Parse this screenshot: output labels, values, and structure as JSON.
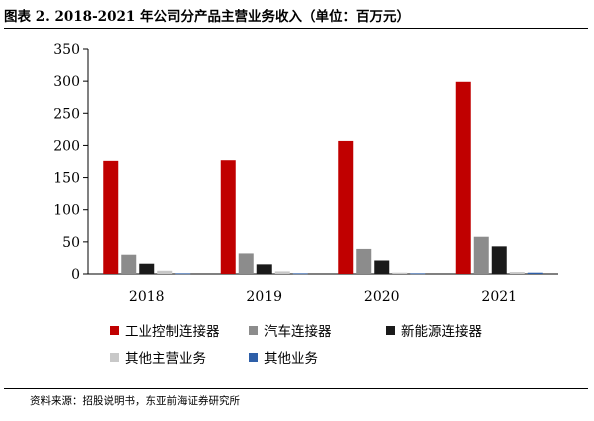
{
  "title": "图表 2.  2018-2021 年公司分产品主营业务收入（单位：百万元）",
  "source": "资料来源：招股说明书，东亚前海证券研究所",
  "chart_data": {
    "type": "bar",
    "categories": [
      "2018",
      "2019",
      "2020",
      "2021"
    ],
    "series": [
      {
        "name": "工业控制连接器",
        "color": "#c00000",
        "values": [
          176,
          177,
          207,
          299
        ]
      },
      {
        "name": "汽车连接器",
        "color": "#8c8c8c",
        "values": [
          30,
          32,
          39,
          58
        ]
      },
      {
        "name": "新能源连接器",
        "color": "#1a1a1a",
        "values": [
          16,
          15,
          21,
          43
        ]
      },
      {
        "name": "其他主营业务",
        "color": "#c8c8c8",
        "values": [
          5,
          4,
          2,
          3
        ]
      },
      {
        "name": "其他业务",
        "color": "#2e5fa8",
        "values": [
          1,
          1,
          1,
          2
        ]
      }
    ],
    "ylim": [
      0,
      350
    ],
    "yticks": [
      0,
      50,
      100,
      150,
      200,
      250,
      300,
      350
    ],
    "grid": false,
    "legend": "bottom"
  }
}
